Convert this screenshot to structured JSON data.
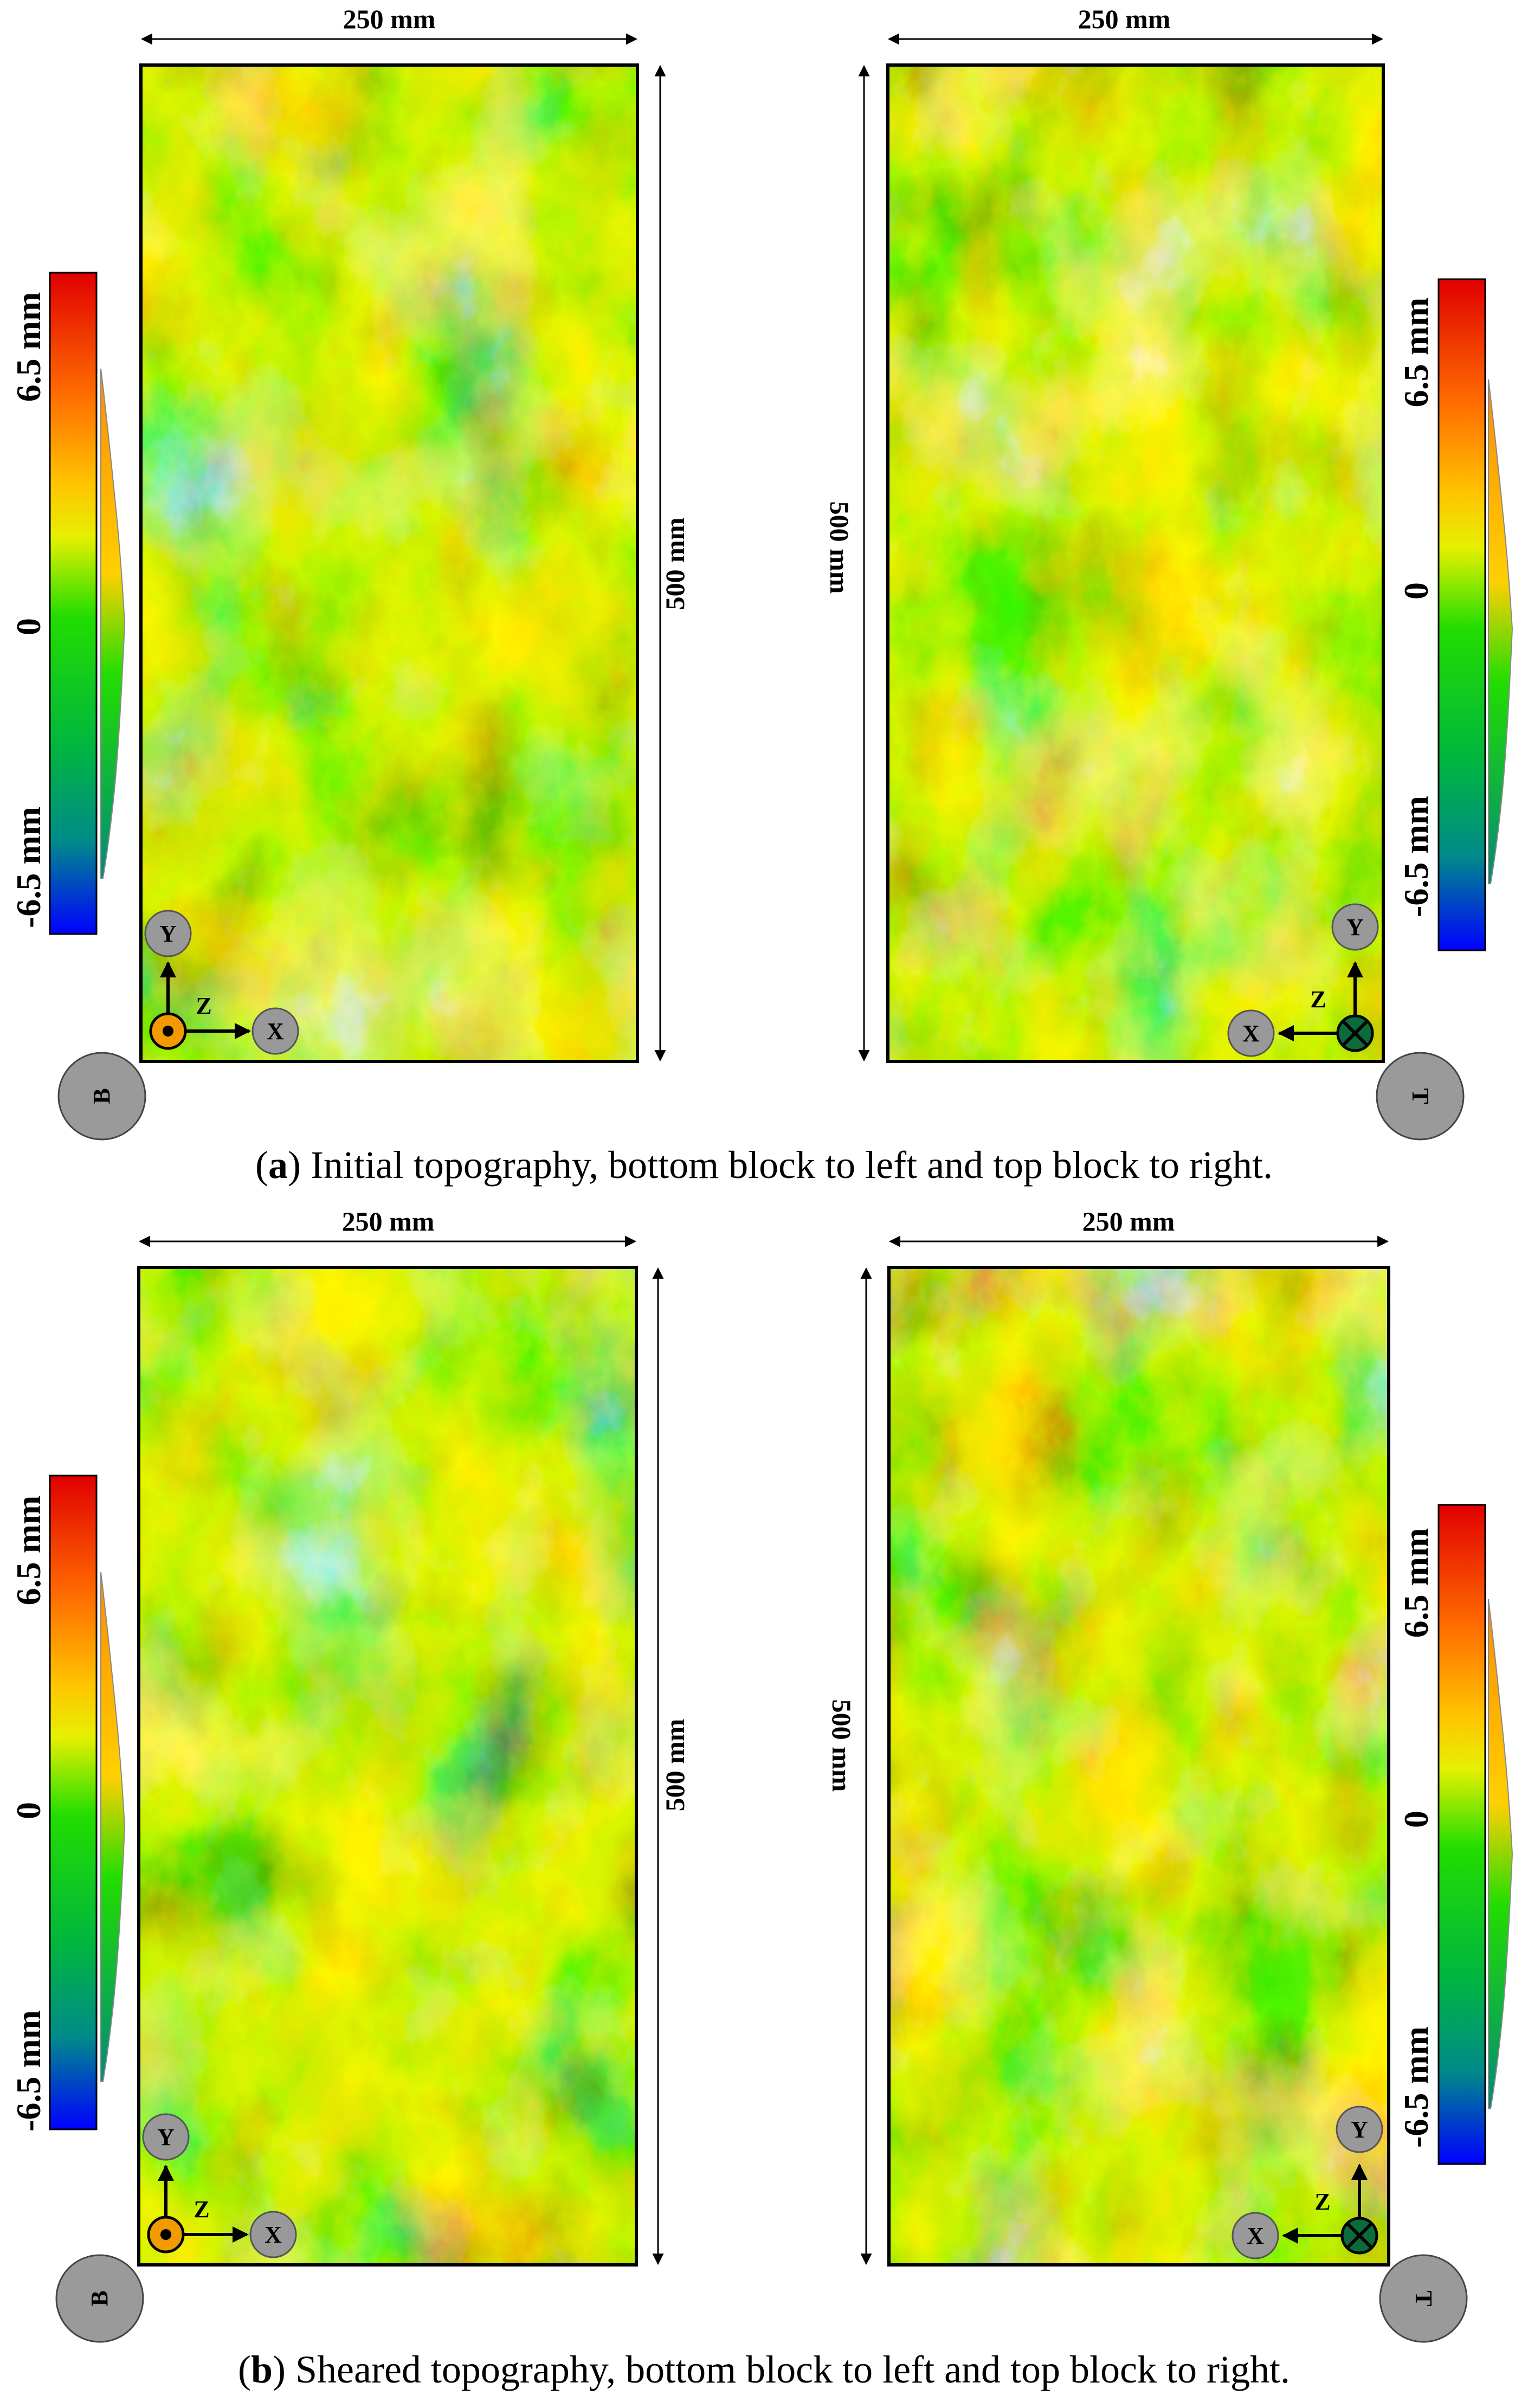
{
  "dimensions": {
    "width_label": "250 mm",
    "length_label": "500 mm"
  },
  "color_scale": {
    "max_label": "6.5 mm",
    "mid_label": "0",
    "min_label": "-6.5 mm",
    "colors": [
      "#e00000",
      "#ff6a00",
      "#ffe600",
      "#c9f000",
      "#22dd00",
      "#00a35a",
      "#0000ff"
    ]
  },
  "axes": {
    "y": "Y",
    "x": "X",
    "z": "Z",
    "z_out_color": "#f29a00",
    "z_in_color": "#0b6b3a"
  },
  "blocks": {
    "bottom": "B",
    "top": "T"
  },
  "captions": {
    "a": {
      "label": "a",
      "text": "Initial topography, bottom block to left and top block to right."
    },
    "b": {
      "label": "b",
      "text": "Sheared topography, bottom block to left and top block to right."
    }
  }
}
